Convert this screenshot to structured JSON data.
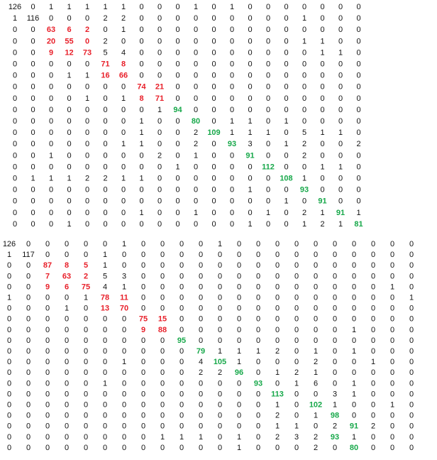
{
  "chart_data": [
    {
      "type": "table",
      "rows": [
        [
          126,
          0,
          1,
          1,
          1,
          1,
          1,
          0,
          0,
          0,
          1,
          0,
          1,
          0,
          0,
          0,
          0,
          0,
          0,
          0
        ],
        [
          1,
          116,
          0,
          0,
          0,
          2,
          2,
          0,
          0,
          0,
          0,
          0,
          0,
          0,
          0,
          0,
          1,
          0,
          0,
          0
        ],
        [
          0,
          0,
          63,
          6,
          2,
          0,
          1,
          0,
          0,
          0,
          0,
          0,
          0,
          0,
          0,
          0,
          0,
          0,
          0,
          0
        ],
        [
          0,
          0,
          20,
          55,
          0,
          2,
          0,
          0,
          0,
          0,
          0,
          0,
          0,
          0,
          0,
          0,
          1,
          1,
          0,
          0
        ],
        [
          0,
          0,
          9,
          12,
          73,
          5,
          4,
          0,
          0,
          0,
          0,
          0,
          0,
          0,
          0,
          0,
          0,
          1,
          1,
          0
        ],
        [
          0,
          0,
          0,
          0,
          0,
          71,
          8,
          0,
          0,
          0,
          0,
          0,
          0,
          0,
          0,
          0,
          0,
          0,
          0,
          0
        ],
        [
          0,
          0,
          0,
          1,
          1,
          16,
          66,
          0,
          0,
          0,
          0,
          0,
          0,
          0,
          0,
          0,
          0,
          0,
          0,
          0
        ],
        [
          0,
          0,
          0,
          0,
          0,
          0,
          0,
          74,
          21,
          0,
          0,
          0,
          0,
          0,
          0,
          0,
          0,
          0,
          0,
          0
        ],
        [
          0,
          0,
          0,
          0,
          1,
          0,
          1,
          8,
          71,
          0,
          0,
          0,
          0,
          0,
          0,
          0,
          0,
          0,
          0,
          0
        ],
        [
          0,
          0,
          0,
          0,
          0,
          0,
          0,
          0,
          1,
          94,
          0,
          0,
          0,
          0,
          0,
          0,
          0,
          0,
          0,
          0
        ],
        [
          0,
          0,
          0,
          0,
          0,
          0,
          0,
          1,
          0,
          0,
          80,
          0,
          1,
          1,
          0,
          1,
          0,
          0,
          0,
          0
        ],
        [
          0,
          0,
          0,
          0,
          0,
          0,
          0,
          1,
          0,
          0,
          2,
          109,
          1,
          1,
          1,
          0,
          5,
          1,
          1,
          0
        ],
        [
          0,
          0,
          0,
          0,
          0,
          0,
          1,
          1,
          0,
          0,
          2,
          0,
          93,
          3,
          0,
          1,
          2,
          0,
          0,
          2
        ],
        [
          0,
          0,
          1,
          0,
          0,
          0,
          0,
          0,
          2,
          0,
          1,
          0,
          0,
          91,
          0,
          0,
          2,
          0,
          0,
          0
        ],
        [
          0,
          0,
          0,
          0,
          0,
          0,
          0,
          0,
          0,
          1,
          0,
          0,
          0,
          0,
          112,
          0,
          0,
          1,
          1,
          0
        ],
        [
          0,
          1,
          1,
          1,
          2,
          2,
          1,
          1,
          0,
          0,
          0,
          0,
          0,
          0,
          0,
          108,
          1,
          0,
          0,
          0
        ],
        [
          0,
          0,
          0,
          0,
          0,
          0,
          0,
          0,
          0,
          0,
          0,
          0,
          0,
          1,
          0,
          0,
          93,
          0,
          0,
          0
        ],
        [
          0,
          0,
          0,
          0,
          0,
          0,
          0,
          0,
          0,
          0,
          0,
          0,
          0,
          0,
          0,
          1,
          0,
          91,
          0,
          0
        ],
        [
          0,
          0,
          0,
          0,
          0,
          0,
          0,
          1,
          0,
          0,
          1,
          0,
          0,
          0,
          1,
          0,
          2,
          1,
          91,
          1
        ],
        [
          0,
          0,
          0,
          1,
          0,
          0,
          0,
          0,
          0,
          0,
          0,
          0,
          0,
          1,
          0,
          0,
          1,
          2,
          1,
          81
        ]
      ],
      "highlight": {
        "red": [
          [
            2,
            2
          ],
          [
            2,
            3
          ],
          [
            2,
            4
          ],
          [
            3,
            2
          ],
          [
            3,
            3
          ],
          [
            3,
            4
          ],
          [
            4,
            2
          ],
          [
            4,
            3
          ],
          [
            4,
            4
          ],
          [
            5,
            5
          ],
          [
            5,
            6
          ],
          [
            6,
            5
          ],
          [
            6,
            6
          ],
          [
            7,
            7
          ],
          [
            7,
            8
          ],
          [
            8,
            7
          ],
          [
            8,
            8
          ]
        ],
        "green": [
          [
            9,
            9
          ],
          [
            10,
            10
          ],
          [
            11,
            11
          ],
          [
            12,
            12
          ],
          [
            13,
            13
          ],
          [
            14,
            14
          ],
          [
            15,
            15
          ],
          [
            16,
            16
          ],
          [
            17,
            17
          ],
          [
            18,
            18
          ],
          [
            19,
            19
          ]
        ]
      },
      "colors": {
        "text": "#111111",
        "red": "#e8202a",
        "green": "#17a84a"
      }
    },
    {
      "type": "table",
      "rows": [
        [
          126,
          0,
          0,
          0,
          0,
          0,
          1,
          0,
          0,
          0,
          0,
          1,
          0,
          0,
          0,
          0,
          0,
          0,
          0,
          0,
          0,
          0
        ],
        [
          1,
          117,
          0,
          0,
          0,
          1,
          0,
          0,
          0,
          0,
          0,
          0,
          0,
          0,
          0,
          0,
          0,
          0,
          0,
          0,
          0,
          0
        ],
        [
          0,
          0,
          87,
          8,
          5,
          1,
          0,
          0,
          0,
          0,
          0,
          0,
          0,
          0,
          0,
          0,
          0,
          0,
          0,
          0,
          0,
          0
        ],
        [
          0,
          0,
          7,
          63,
          2,
          5,
          3,
          0,
          0,
          0,
          0,
          0,
          0,
          0,
          0,
          0,
          0,
          0,
          0,
          0,
          0,
          0
        ],
        [
          0,
          0,
          9,
          6,
          75,
          4,
          1,
          0,
          0,
          0,
          0,
          0,
          0,
          0,
          0,
          0,
          0,
          0,
          0,
          0,
          1,
          0
        ],
        [
          1,
          0,
          0,
          0,
          1,
          78,
          11,
          0,
          0,
          0,
          0,
          0,
          0,
          0,
          0,
          0,
          0,
          0,
          0,
          0,
          0,
          1
        ],
        [
          0,
          0,
          0,
          1,
          0,
          13,
          70,
          0,
          0,
          0,
          0,
          0,
          0,
          0,
          0,
          0,
          0,
          0,
          0,
          0,
          0,
          0
        ],
        [
          0,
          0,
          0,
          0,
          0,
          0,
          0,
          75,
          15,
          0,
          0,
          0,
          0,
          0,
          0,
          0,
          0,
          0,
          0,
          0,
          0,
          0
        ],
        [
          0,
          0,
          0,
          0,
          0,
          0,
          0,
          9,
          88,
          0,
          0,
          0,
          0,
          0,
          0,
          0,
          0,
          0,
          1,
          0,
          0,
          0
        ],
        [
          0,
          0,
          0,
          0,
          0,
          0,
          0,
          0,
          0,
          95,
          0,
          0,
          0,
          0,
          0,
          0,
          0,
          0,
          0,
          0,
          0,
          0
        ],
        [
          0,
          0,
          0,
          0,
          0,
          0,
          0,
          0,
          0,
          0,
          79,
          1,
          1,
          1,
          2,
          0,
          1,
          0,
          1,
          0,
          0,
          0
        ],
        [
          0,
          0,
          0,
          0,
          0,
          0,
          1,
          0,
          0,
          0,
          4,
          105,
          1,
          0,
          0,
          0,
          2,
          0,
          0,
          1,
          0,
          0
        ],
        [
          0,
          0,
          0,
          0,
          0,
          0,
          0,
          0,
          0,
          0,
          2,
          2,
          96,
          0,
          1,
          2,
          1,
          0,
          0,
          0,
          0,
          0
        ],
        [
          0,
          0,
          0,
          0,
          0,
          1,
          0,
          0,
          0,
          0,
          0,
          0,
          0,
          93,
          0,
          1,
          6,
          0,
          1,
          0,
          0,
          0
        ],
        [
          0,
          0,
          0,
          0,
          0,
          0,
          0,
          0,
          0,
          0,
          0,
          0,
          0,
          0,
          113,
          0,
          0,
          3,
          1,
          0,
          0,
          0
        ],
        [
          0,
          0,
          0,
          0,
          0,
          0,
          0,
          0,
          0,
          0,
          0,
          0,
          0,
          0,
          1,
          0,
          102,
          1,
          0,
          0,
          1,
          0
        ],
        [
          0,
          0,
          0,
          0,
          0,
          0,
          0,
          0,
          0,
          0,
          0,
          0,
          0,
          0,
          2,
          0,
          1,
          98,
          0,
          0,
          0,
          0
        ],
        [
          0,
          0,
          0,
          0,
          0,
          0,
          0,
          0,
          0,
          0,
          0,
          0,
          0,
          0,
          1,
          1,
          0,
          2,
          91,
          2,
          0,
          0
        ],
        [
          0,
          0,
          0,
          0,
          0,
          0,
          0,
          0,
          1,
          1,
          1,
          0,
          1,
          0,
          2,
          3,
          2,
          93,
          1,
          0,
          0,
          0
        ],
        [
          0,
          0,
          0,
          0,
          0,
          0,
          0,
          0,
          0,
          0,
          0,
          0,
          1,
          0,
          0,
          0,
          2,
          0,
          80,
          0,
          0,
          0
        ]
      ],
      "highlight": {
        "red": [
          [
            2,
            2
          ],
          [
            2,
            3
          ],
          [
            2,
            4
          ],
          [
            3,
            2
          ],
          [
            3,
            3
          ],
          [
            3,
            4
          ],
          [
            4,
            2
          ],
          [
            4,
            3
          ],
          [
            4,
            4
          ],
          [
            5,
            5
          ],
          [
            5,
            6
          ],
          [
            6,
            5
          ],
          [
            6,
            6
          ],
          [
            7,
            7
          ],
          [
            7,
            8
          ],
          [
            8,
            7
          ],
          [
            8,
            8
          ]
        ],
        "green": [
          [
            9,
            9
          ],
          [
            10,
            10
          ],
          [
            11,
            11
          ],
          [
            12,
            12
          ],
          [
            13,
            13
          ],
          [
            14,
            14
          ],
          [
            15,
            16
          ],
          [
            16,
            17
          ],
          [
            17,
            18
          ],
          [
            18,
            17
          ],
          [
            19,
            18
          ]
        ]
      },
      "colors": {
        "text": "#111111",
        "red": "#e8202a",
        "green": "#17a84a"
      }
    }
  ]
}
